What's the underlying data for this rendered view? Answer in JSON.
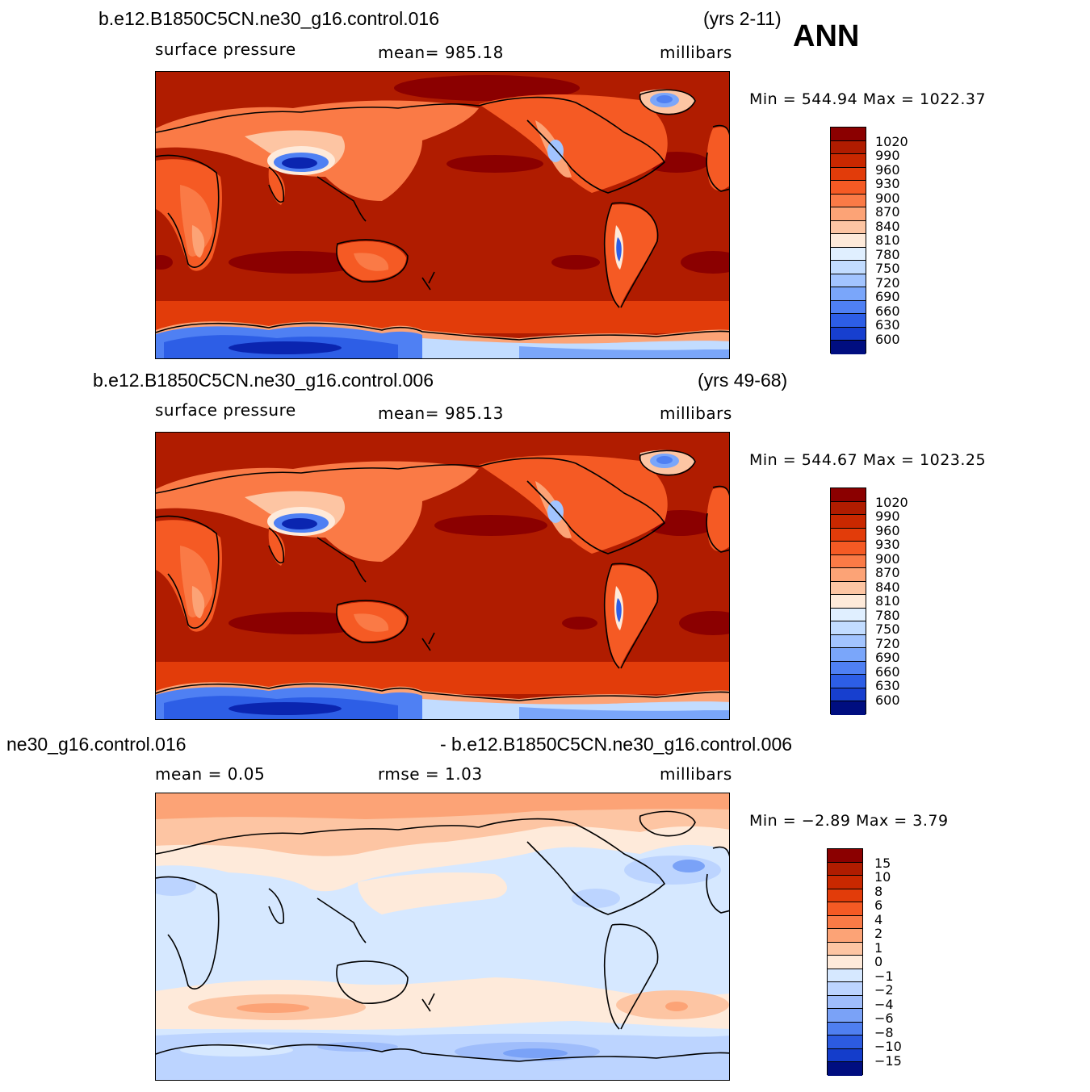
{
  "season": "ANN",
  "panels": [
    {
      "case_title": "b.e12.B1850C5CN.ne30_g16.control.016",
      "years": "(yrs 2-11)",
      "variable": "surface pressure",
      "stat_text": "mean=  985.18",
      "units": "millibars",
      "minmax": "Min  =  544.94  Max  =  1022.37",
      "colorbar_labels": [
        "1020",
        "990",
        "960",
        "930",
        "900",
        "870",
        "840",
        "810",
        "780",
        "750",
        "720",
        "690",
        "660",
        "630",
        "600"
      ]
    },
    {
      "case_title": "b.e12.B1850C5CN.ne30_g16.control.006",
      "years": "(yrs 49-68)",
      "variable": "surface pressure",
      "stat_text": "mean=  985.13",
      "units": "millibars",
      "minmax": "Min  =  544.67  Max  =  1023.25",
      "colorbar_labels": [
        "1020",
        "990",
        "960",
        "930",
        "900",
        "870",
        "840",
        "810",
        "780",
        "750",
        "720",
        "690",
        "660",
        "630",
        "600"
      ]
    },
    {
      "case_title": "ne30_g16.control.016",
      "case_title_right": "- b.e12.B1850C5CN.ne30_g16.control.006",
      "mean_text": "mean  =     0.05",
      "rmse_text": "rmse  =     1.03",
      "units": "millibars",
      "minmax": "Min  =    −2.89  Max  =      3.79",
      "colorbar_labels": [
        "15",
        "10",
        "8",
        "6",
        "4",
        "2",
        "1",
        "0",
        "−1",
        "−2",
        "−4",
        "−6",
        "−8",
        "−10",
        "−15"
      ]
    }
  ],
  "colors": {
    "abs_scale": [
      "#8b0000",
      "#b01c00",
      "#c92800",
      "#e23c0a",
      "#f55a24",
      "#fa7a46",
      "#fca376",
      "#fdc5a3",
      "#feeada",
      "#e0efff",
      "#c2dcff",
      "#a2c4ff",
      "#7aa6fa",
      "#4f80f3",
      "#2d5ee6",
      "#173fcf",
      "#0a25b0",
      "#000e80"
    ],
    "diff_scale": [
      "#8b0000",
      "#b01c00",
      "#c92800",
      "#e23c0a",
      "#f55a24",
      "#fa7a46",
      "#fca376",
      "#fdc5a3",
      "#feeada",
      "#d6e8ff",
      "#bcd4ff",
      "#9fbdfb",
      "#7aa2f7",
      "#4f7ff0",
      "#2c5be0",
      "#143dcb",
      "#0a22a8",
      "#000e80"
    ]
  }
}
